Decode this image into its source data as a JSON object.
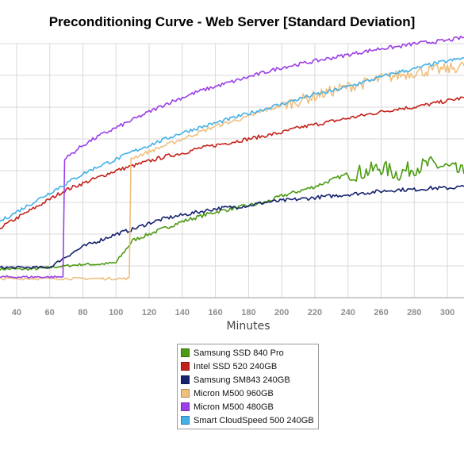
{
  "chart_data": {
    "type": "line",
    "title": "Preconditioning Curve - Web Server [Standard Deviation]",
    "xlabel": "Minutes",
    "ylabel": "",
    "x_ticks": [
      40,
      60,
      80,
      100,
      120,
      140,
      160,
      180,
      200,
      220,
      240,
      260,
      280,
      300
    ],
    "xlim": [
      30,
      310
    ],
    "ylim": [
      0,
      8
    ],
    "grid": true,
    "legend_position": "bottom-center",
    "x": [
      30,
      40,
      50,
      60,
      70,
      80,
      90,
      100,
      110,
      120,
      130,
      140,
      150,
      160,
      170,
      180,
      190,
      200,
      210,
      220,
      230,
      240,
      250,
      260,
      270,
      280,
      290,
      300,
      310
    ],
    "series": [
      {
        "name": "Samsung SSD 840 Pro",
        "color": "#4c9b13",
        "values": [
          0.9,
          0.9,
          0.9,
          0.95,
          1.0,
          1.05,
          1.05,
          1.1,
          1.8,
          2.0,
          2.2,
          2.4,
          2.55,
          2.7,
          2.8,
          2.9,
          3.0,
          3.2,
          3.35,
          3.5,
          3.7,
          3.9,
          3.95,
          4.1,
          3.9,
          4.1,
          4.2,
          4.1,
          3.9
        ]
      },
      {
        "name": "Intel SSD 520 240GB",
        "color": "#c5221c",
        "values": [
          2.2,
          2.5,
          2.8,
          3.1,
          3.4,
          3.6,
          3.8,
          4.0,
          4.15,
          4.3,
          4.45,
          4.55,
          4.7,
          4.8,
          4.9,
          5.0,
          5.1,
          5.2,
          5.35,
          5.45,
          5.55,
          5.65,
          5.75,
          5.85,
          5.95,
          6.0,
          6.1,
          6.2,
          6.3
        ]
      },
      {
        "name": "Samsung SM843 240GB",
        "color": "#16226e",
        "values": [
          0.95,
          0.95,
          0.95,
          0.95,
          1.3,
          1.6,
          1.8,
          2.0,
          2.15,
          2.35,
          2.5,
          2.6,
          2.7,
          2.8,
          2.85,
          2.9,
          3.0,
          3.05,
          3.1,
          3.15,
          3.2,
          3.25,
          3.3,
          3.35,
          3.4,
          3.4,
          3.45,
          3.45,
          3.5
        ]
      },
      {
        "name": "Micron M500 960GB",
        "color": "#efbf7f",
        "values": [
          0.6,
          0.6,
          0.6,
          0.6,
          0.6,
          0.6,
          0.6,
          0.6,
          4.4,
          4.6,
          4.8,
          5.0,
          5.2,
          5.4,
          5.55,
          5.7,
          5.9,
          6.05,
          6.2,
          6.35,
          6.5,
          6.65,
          6.75,
          6.9,
          7.0,
          7.1,
          7.15,
          7.2,
          7.3
        ]
      },
      {
        "name": "Micron M500 480GB",
        "color": "#9b3fe6",
        "values": [
          0.65,
          0.65,
          0.65,
          0.65,
          4.4,
          4.8,
          5.1,
          5.35,
          5.6,
          5.85,
          6.1,
          6.3,
          6.5,
          6.65,
          6.8,
          6.95,
          7.1,
          7.25,
          7.35,
          7.45,
          7.55,
          7.65,
          7.75,
          7.85,
          7.9,
          8.0,
          8.05,
          8.1,
          8.2
        ]
      },
      {
        "name": "Smart CloudSpeed 500 240GB",
        "color": "#44b1e6",
        "values": [
          2.4,
          2.7,
          3.0,
          3.3,
          3.6,
          3.9,
          4.15,
          4.35,
          4.6,
          4.8,
          5.0,
          5.2,
          5.35,
          5.5,
          5.65,
          5.8,
          5.95,
          6.1,
          6.25,
          6.4,
          6.5,
          6.65,
          6.8,
          6.95,
          7.1,
          7.2,
          7.35,
          7.45,
          7.55
        ]
      }
    ]
  }
}
